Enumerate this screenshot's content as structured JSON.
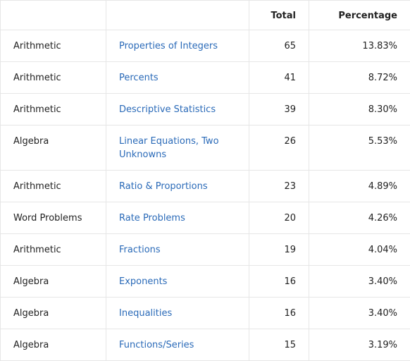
{
  "header": {
    "col1": "",
    "col2": "",
    "total": "Total",
    "percentage": "Percentage"
  },
  "rows": [
    {
      "category": "Arithmetic",
      "topic": "Properties of Integers",
      "total": "65",
      "percentage": "13.83%"
    },
    {
      "category": "Arithmetic",
      "topic": "Percents",
      "total": "41",
      "percentage": "8.72%"
    },
    {
      "category": "Arithmetic",
      "topic": "Descriptive Statistics",
      "total": "39",
      "percentage": "8.30%"
    },
    {
      "category": "Algebra",
      "topic": "Linear Equations, Two Unknowns",
      "total": "26",
      "percentage": "5.53%"
    },
    {
      "category": "Arithmetic",
      "topic": "Ratio & Proportions",
      "total": "23",
      "percentage": "4.89%"
    },
    {
      "category": "Word Problems",
      "topic": "Rate Problems",
      "total": "20",
      "percentage": "4.26%"
    },
    {
      "category": "Arithmetic",
      "topic": "Fractions",
      "total": "19",
      "percentage": "4.04%"
    },
    {
      "category": "Algebra",
      "topic": "Exponents",
      "total": "16",
      "percentage": "3.40%"
    },
    {
      "category": "Algebra",
      "topic": "Inequalities",
      "total": "16",
      "percentage": "3.40%"
    },
    {
      "category": "Algebra",
      "topic": "Functions/Series",
      "total": "15",
      "percentage": "3.19%"
    }
  ]
}
